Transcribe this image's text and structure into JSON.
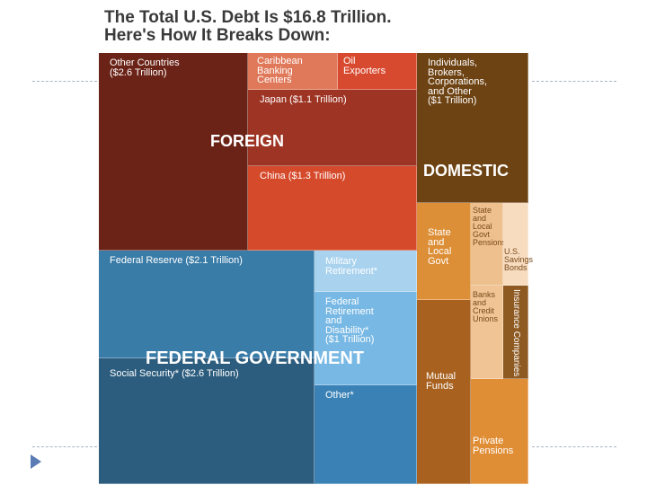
{
  "chart_data": {
    "type": "treemap",
    "title": "The Total U.S. Debt Is $16.8 Trillion.",
    "subtitle": "Here's How It Breaks Down:",
    "total": 16.8,
    "groups": [
      {
        "name": "FOREIGN",
        "color": "#a6392a"
      },
      {
        "name": "DOMESTIC",
        "color": "#7b4a1c"
      },
      {
        "name": "FEDERAL GOVERNMENT",
        "color": "#3a7ba6"
      }
    ],
    "cells": [
      {
        "id": "other-countries",
        "group": "FOREIGN",
        "label": "Other Countries\n($2.6 Trillion)",
        "value": 2.6,
        "color": "#6b2317"
      },
      {
        "id": "caribbean",
        "group": "FOREIGN",
        "label": "Caribbean\nBanking\nCenters",
        "value": null,
        "color": "#e0795a"
      },
      {
        "id": "oil-exporters",
        "group": "FOREIGN",
        "label": "Oil\nExporters",
        "value": null,
        "color": "#d84a30"
      },
      {
        "id": "japan",
        "group": "FOREIGN",
        "label": "Japan ($1.1 Trillion)",
        "value": 1.1,
        "color": "#9e3424"
      },
      {
        "id": "china",
        "group": "FOREIGN",
        "label": "China ($1.3 Trillion)",
        "value": 1.3,
        "color": "#d64a2c"
      },
      {
        "id": "individuals",
        "group": "DOMESTIC",
        "label": "Individuals,\nBrokers,\nCorporations,\nand Other\n($1 Trillion)",
        "value": 1.0,
        "color": "#6e4313"
      },
      {
        "id": "state-local-govt",
        "group": "DOMESTIC",
        "label": "State\nand\nLocal\nGovt",
        "value": null,
        "color": "#dd8f37"
      },
      {
        "id": "state-local-pensions",
        "group": "DOMESTIC",
        "label": "State\nand\nLocal\nGovt\nPensions",
        "value": null,
        "color": "#eec08d"
      },
      {
        "id": "us-savings-bonds",
        "group": "DOMESTIC",
        "label": "U.S.\nSavings\nBonds",
        "value": null,
        "color": "#f7dcc0"
      },
      {
        "id": "banks",
        "group": "DOMESTIC",
        "label": "Banks\nand\nCredit\nUnions",
        "value": null,
        "color": "#f0c494"
      },
      {
        "id": "insurance",
        "group": "DOMESTIC",
        "label": "Insurance Companies",
        "value": null,
        "color": "#8e5a22"
      },
      {
        "id": "mutual-funds",
        "group": "DOMESTIC",
        "label": "Mutual\nFunds",
        "value": null,
        "color": "#a8611f"
      },
      {
        "id": "private-pensions",
        "group": "DOMESTIC",
        "label": "Private\nPensions",
        "value": null,
        "color": "#e08e36"
      },
      {
        "id": "federal-reserve",
        "group": "FEDERAL GOVERNMENT",
        "label": "Federal Reserve ($2.1 Trillion)",
        "value": 2.1,
        "color": "#3a7ca8"
      },
      {
        "id": "military-retirement",
        "group": "FEDERAL GOVERNMENT",
        "label": "Military\nRetirement*",
        "value": null,
        "color": "#a8d2ee"
      },
      {
        "id": "federal-retirement",
        "group": "FEDERAL GOVERNMENT",
        "label": "Federal\nRetirement\nand\nDisability*\n($1 Trillion)",
        "value": 1.0,
        "color": "#78b8e4"
      },
      {
        "id": "social-security",
        "group": "FEDERAL GOVERNMENT",
        "label": "Social Security* ($2.6 Trillion)",
        "value": 2.6,
        "color": "#2d5d7e"
      },
      {
        "id": "other",
        "group": "FEDERAL GOVERNMENT",
        "label": "Other*",
        "value": null,
        "color": "#3a82b6"
      }
    ]
  }
}
